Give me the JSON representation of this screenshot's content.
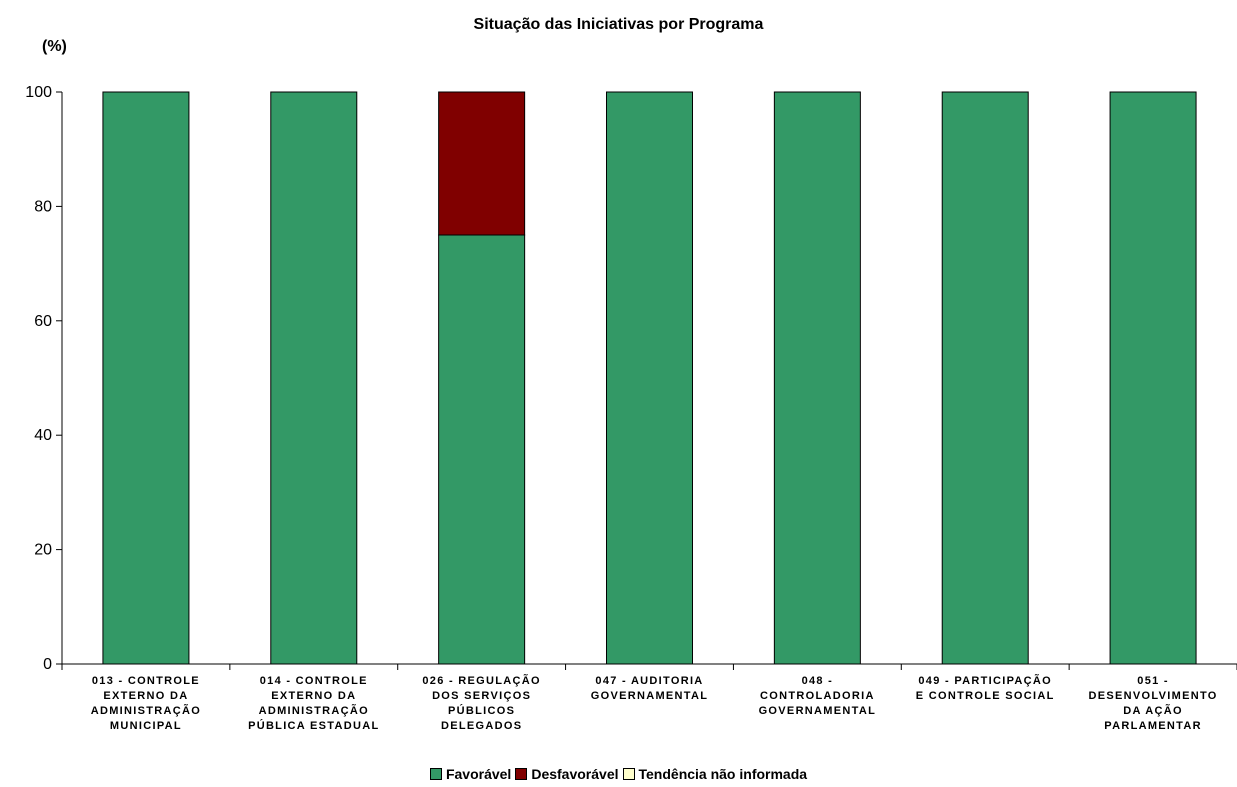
{
  "chart_data": {
    "type": "bar",
    "stacked": true,
    "title": "Situação das Iniciativas por Programa",
    "ylabel": "(%)",
    "xlabel": "",
    "ylim": [
      0,
      100
    ],
    "yticks": [
      0,
      20,
      40,
      60,
      80,
      100
    ],
    "grid": false,
    "legend_position": "bottom",
    "categories": [
      [
        "013 - CONTROLE",
        "EXTERNO DA",
        "ADMINISTRAÇÃO",
        "MUNICIPAL"
      ],
      [
        "014 - CONTROLE",
        "EXTERNO DA",
        "ADMINISTRAÇÃO",
        "PÚBLICA ESTADUAL"
      ],
      [
        "026 - REGULAÇÃO",
        "DOS SERVIÇOS",
        "PÚBLICOS",
        "DELEGADOS"
      ],
      [
        "047 - AUDITORIA",
        "GOVERNAMENTAL"
      ],
      [
        "048 -",
        "CONTROLADORIA",
        "GOVERNAMENTAL"
      ],
      [
        "049 - PARTICIPAÇÃO",
        "E CONTROLE SOCIAL"
      ],
      [
        "051 -",
        "DESENVOLVIMENTO",
        "DA AÇÃO",
        "PARLAMENTAR"
      ]
    ],
    "series": [
      {
        "name": "Favorável",
        "color": "#339966",
        "values": [
          100,
          100,
          75,
          100,
          100,
          100,
          100
        ]
      },
      {
        "name": "Desfavorável",
        "color": "#800000",
        "values": [
          0,
          0,
          25,
          0,
          0,
          0,
          0
        ]
      },
      {
        "name": "Tendência não informada",
        "color": "#ffffcc",
        "values": [
          0,
          0,
          0,
          0,
          0,
          0,
          0
        ]
      }
    ]
  }
}
